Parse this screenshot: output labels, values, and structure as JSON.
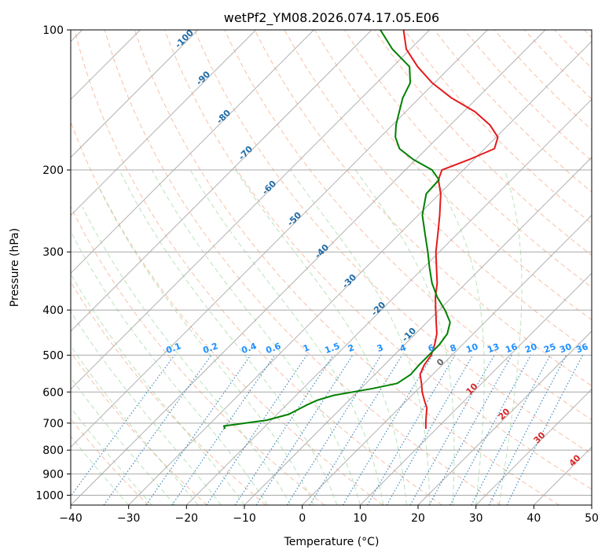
{
  "chart_data": {
    "type": "skew-t",
    "title": "wetPf2_YM08.2026.074.17.05.E06",
    "xlabel": "Temperature (°C)",
    "ylabel": "Pressure (hPa)",
    "xlim": [
      -40,
      50
    ],
    "ylim": [
      1050,
      100
    ],
    "x_ticks": [
      -40,
      -30,
      -20,
      -10,
      0,
      10,
      20,
      30,
      40,
      50
    ],
    "y_ticks": [
      1000,
      900,
      800,
      700,
      600,
      500,
      400,
      300,
      200,
      100
    ],
    "grid": true,
    "series": [
      {
        "kind": "temperature",
        "color": "#e41a1c",
        "points": [
          [
            8.2,
            720
          ],
          [
            7.2,
            700
          ],
          [
            6.0,
            675
          ],
          [
            4.8,
            650
          ],
          [
            3.0,
            625
          ],
          [
            1.2,
            600
          ],
          [
            -0.4,
            575
          ],
          [
            -2.2,
            550
          ],
          [
            -3.1,
            525
          ],
          [
            -3.6,
            500
          ],
          [
            -4.8,
            475
          ],
          [
            -6.3,
            450
          ],
          [
            -8.4,
            425
          ],
          [
            -10.6,
            400
          ],
          [
            -12.9,
            375
          ],
          [
            -15.0,
            350
          ],
          [
            -17.7,
            325
          ],
          [
            -20.6,
            300
          ],
          [
            -23.3,
            275
          ],
          [
            -26.3,
            250
          ],
          [
            -29.8,
            225
          ],
          [
            -32.6,
            210
          ],
          [
            -33.7,
            200
          ],
          [
            -30.8,
            190
          ],
          [
            -28.3,
            180
          ],
          [
            -29.7,
            170
          ],
          [
            -33.2,
            160
          ],
          [
            -38.0,
            150
          ],
          [
            -44.5,
            140
          ],
          [
            -50.4,
            130
          ],
          [
            -55.7,
            120
          ],
          [
            -60.7,
            110
          ],
          [
            -64.5,
            100
          ]
        ]
      },
      {
        "kind": "dewpoint",
        "color": "#008000",
        "points": [
          [
            -26.5,
            720
          ],
          [
            -27.2,
            710
          ],
          [
            -20.8,
            690
          ],
          [
            -18.0,
            670
          ],
          [
            -16.5,
            640
          ],
          [
            -15.5,
            625
          ],
          [
            -13.5,
            610
          ],
          [
            -8.0,
            590
          ],
          [
            -4.6,
            575
          ],
          [
            -3.8,
            550
          ],
          [
            -4.0,
            525
          ],
          [
            -4.0,
            500
          ],
          [
            -4.0,
            475
          ],
          [
            -4.5,
            450
          ],
          [
            -6.0,
            425
          ],
          [
            -9.0,
            400
          ],
          [
            -12.6,
            375
          ],
          [
            -15.9,
            350
          ],
          [
            -18.9,
            325
          ],
          [
            -22.0,
            300
          ],
          [
            -25.5,
            275
          ],
          [
            -29.3,
            250
          ],
          [
            -32.3,
            225
          ],
          [
            -32.5,
            210
          ],
          [
            -35.4,
            200
          ],
          [
            -40.4,
            190
          ],
          [
            -44.7,
            180
          ],
          [
            -47.4,
            170
          ],
          [
            -49.4,
            160
          ],
          [
            -51.1,
            150
          ],
          [
            -52.9,
            140
          ],
          [
            -54.2,
            130
          ],
          [
            -57.1,
            120
          ],
          [
            -63.1,
            110
          ],
          [
            -68.5,
            100
          ]
        ]
      }
    ],
    "isotherm_labels": [
      "-100",
      "-90",
      "-80",
      "-70",
      "-60",
      "-50",
      "-40",
      "-30",
      "-20",
      "-10",
      "0",
      "10",
      "20",
      "30",
      "40"
    ],
    "mixing_ratio_labels": [
      "0.1",
      "0.2",
      "0.4",
      "0.6",
      "1",
      "1.5",
      "2",
      "3",
      "4",
      "6",
      "8",
      "10",
      "13",
      "16",
      "20",
      "25",
      "30",
      "36"
    ]
  },
  "colors": {
    "temperature": "#e41a1c",
    "dewpoint": "#008000",
    "grid": "#a8a8a8",
    "dry_adiabat": "#f4a582",
    "moist_adiabat": "#66c066",
    "mixing_ratio": "#1f77b4",
    "isotherm_label_cold": "#1f6aa5",
    "isotherm_label_warm": "#d62728",
    "mixing_label": "#1e90ff"
  }
}
